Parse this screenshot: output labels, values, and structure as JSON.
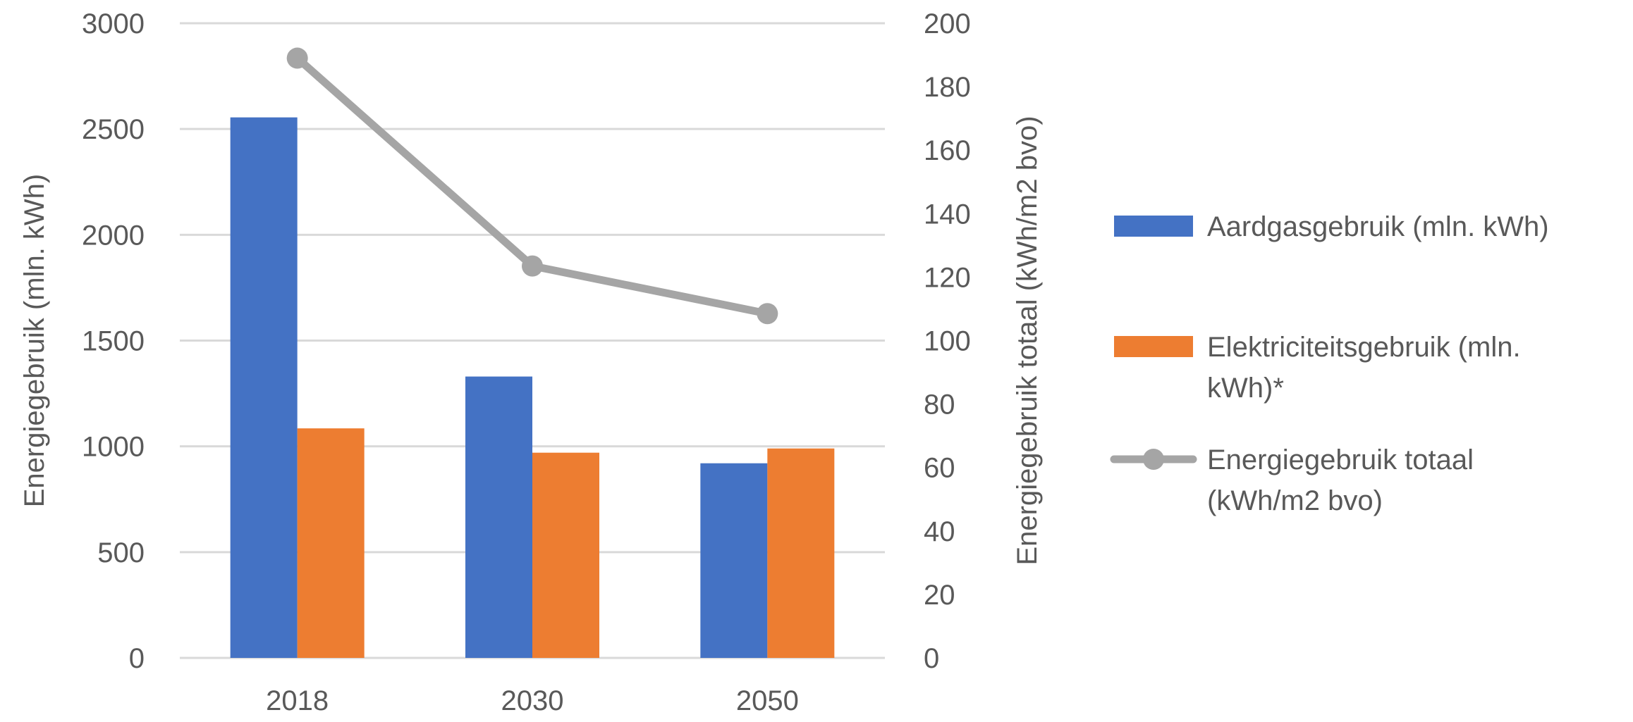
{
  "chart_data": {
    "type": "bar",
    "categories": [
      "2018",
      "2030",
      "2050"
    ],
    "series": [
      {
        "name": "Aardgasgebruik (mln. kWh)",
        "type": "bar",
        "axis": "left",
        "color": "#4472C4",
        "values": [
          2555,
          1330,
          920
        ]
      },
      {
        "name": "Elektriciteitsgebruik (mln. kWh)*",
        "legend_lines": [
          "Elektriciteitsgebruik (mln.",
          "kWh)*"
        ],
        "type": "bar",
        "axis": "left",
        "color": "#ED7D31",
        "values": [
          1085,
          970,
          990
        ]
      },
      {
        "name": "Energiegebruik totaal (kWh/m2 bvo)",
        "legend_lines": [
          "Energiegebruik totaal",
          "(kWh/m2 bvo)"
        ],
        "type": "line",
        "axis": "right",
        "color": "#A5A5A5",
        "marker": "circle",
        "values": [
          189,
          123.5,
          108.5
        ]
      }
    ],
    "y_left": {
      "label": "Energiegebruik (mln. kWh)",
      "lim": [
        0,
        3000
      ],
      "ticks": [
        "0",
        "500",
        "1000",
        "1500",
        "2000",
        "2500",
        "3000"
      ]
    },
    "y_right": {
      "label": "Energiegebruik totaal (kWh/m2 bvo)",
      "lim": [
        0,
        200
      ],
      "ticks": [
        "0",
        "20",
        "40",
        "60",
        "80",
        "100",
        "120",
        "140",
        "160",
        "180",
        "200"
      ]
    },
    "grid": true,
    "legend_position": "right",
    "gridline_color": "#D9D9D9",
    "text_color": "#595959"
  }
}
